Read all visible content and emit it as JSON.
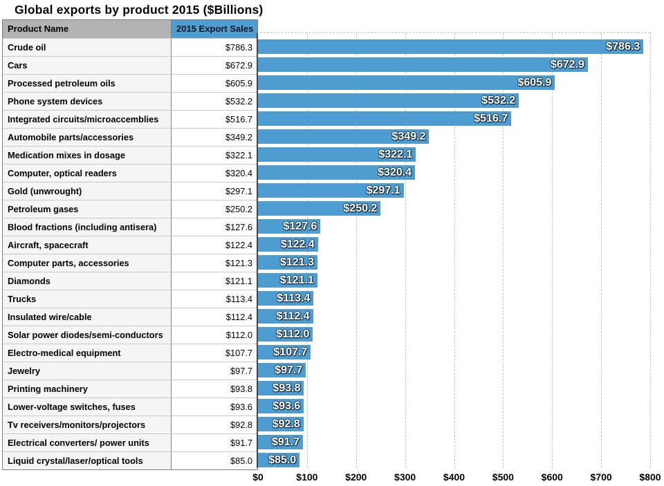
{
  "title": "Global exports by product 2015 ($Billions)",
  "table": {
    "columns": [
      "Product Name",
      "2015 Export Sales"
    ],
    "rows": [
      {
        "name": "Crude oil",
        "value": "$786.3"
      },
      {
        "name": "Cars",
        "value": "$672.9"
      },
      {
        "name": "Processed petroleum oils",
        "value": "$605.9"
      },
      {
        "name": "Phone system devices",
        "value": "$532.2"
      },
      {
        "name": "Integrated circuits/microaccemblies",
        "value": "$516.7"
      },
      {
        "name": "Automobile parts/accessories",
        "value": "$349.2"
      },
      {
        "name": "Medication mixes in dosage",
        "value": "$322.1"
      },
      {
        "name": "Computer, optical readers",
        "value": "$320.4"
      },
      {
        "name": "Gold (unwrought)",
        "value": "$297.1"
      },
      {
        "name": "Petroleum gases",
        "value": "$250.2"
      },
      {
        "name": "Blood fractions (including antisera)",
        "value": "$127.6"
      },
      {
        "name": "Aircraft, spacecraft",
        "value": "$122.4"
      },
      {
        "name": "Computer parts, accessories",
        "value": "$121.3"
      },
      {
        "name": "Diamonds",
        "value": "$121.1"
      },
      {
        "name": "Trucks",
        "value": "$113.4"
      },
      {
        "name": "Insulated wire/cable",
        "value": "$112.4"
      },
      {
        "name": "Solar power diodes/semi-conductors",
        "value": "$112.0"
      },
      {
        "name": "Electro-medical equipment",
        "value": "$107.7"
      },
      {
        "name": "Jewelry",
        "value": "$97.7"
      },
      {
        "name": "Printing machinery",
        "value": "$93.8"
      },
      {
        "name": "Lower-voltage switches, fuses",
        "value": "$93.6"
      },
      {
        "name": "Tv receivers/monitors/projectors",
        "value": "$92.8"
      },
      {
        "name": "Electrical converters/ power units",
        "value": "$91.7"
      },
      {
        "name": "Liquid crystal/laser/optical tools",
        "value": "$85.0"
      }
    ]
  },
  "chart_data": {
    "type": "bar",
    "orientation": "horizontal",
    "title": "Global exports by product 2015 ($Billions)",
    "categories": [
      "Crude oil",
      "Cars",
      "Processed petroleum oils",
      "Phone system devices",
      "Integrated circuits/microaccemblies",
      "Automobile parts/accessories",
      "Medication mixes in dosage",
      "Computer, optical readers",
      "Gold (unwrought)",
      "Petroleum gases",
      "Blood fractions (including antisera)",
      "Aircraft, spacecraft",
      "Computer parts, accessories",
      "Diamonds",
      "Trucks",
      "Insulated wire/cable",
      "Solar power diodes/semi-conductors",
      "Electro-medical equipment",
      "Jewelry",
      "Printing machinery",
      "Lower-voltage switches, fuses",
      "Tv receivers/monitors/projectors",
      "Electrical converters/ power units",
      "Liquid crystal/laser/optical tools"
    ],
    "values": [
      786.3,
      672.9,
      605.9,
      532.2,
      516.7,
      349.2,
      322.1,
      320.4,
      297.1,
      250.2,
      127.6,
      122.4,
      121.3,
      121.1,
      113.4,
      112.4,
      112.0,
      107.7,
      97.7,
      93.8,
      93.6,
      92.8,
      91.7,
      85.0
    ],
    "bar_labels": [
      "$786.3",
      "$672.9",
      "$605.9",
      "$532.2",
      "$516.7",
      "$349.2",
      "$322.1",
      "$320.4",
      "$297.1",
      "$250.2",
      "$127.6",
      "$122.4",
      "$121.3",
      "$121.1",
      "$113.4",
      "$112.4",
      "$112.0",
      "$107.7",
      "$97.7",
      "$93.8",
      "$93.6",
      "$92.8",
      "$91.7",
      "$85.0"
    ],
    "xlabel": "",
    "ylabel": "",
    "xlim": [
      0,
      800
    ],
    "xtick_values": [
      0,
      100,
      200,
      300,
      400,
      500,
      600,
      700,
      800
    ],
    "xtick_labels": [
      "$0",
      "$100",
      "$200",
      "$300",
      "$400",
      "$500",
      "$600",
      "$700",
      "$800"
    ],
    "grid": "vertical-dashed",
    "legend_position": "none",
    "bar_color": "#4e9dd2"
  },
  "colors": {
    "bar": "#4e9dd2",
    "table_header_gray": "#b3b3b3",
    "table_header_blue": "#4e9dd2",
    "row_name_bg": "#f5f5f5",
    "gridline": "#c3c3c3",
    "axis_line": "#454545"
  }
}
